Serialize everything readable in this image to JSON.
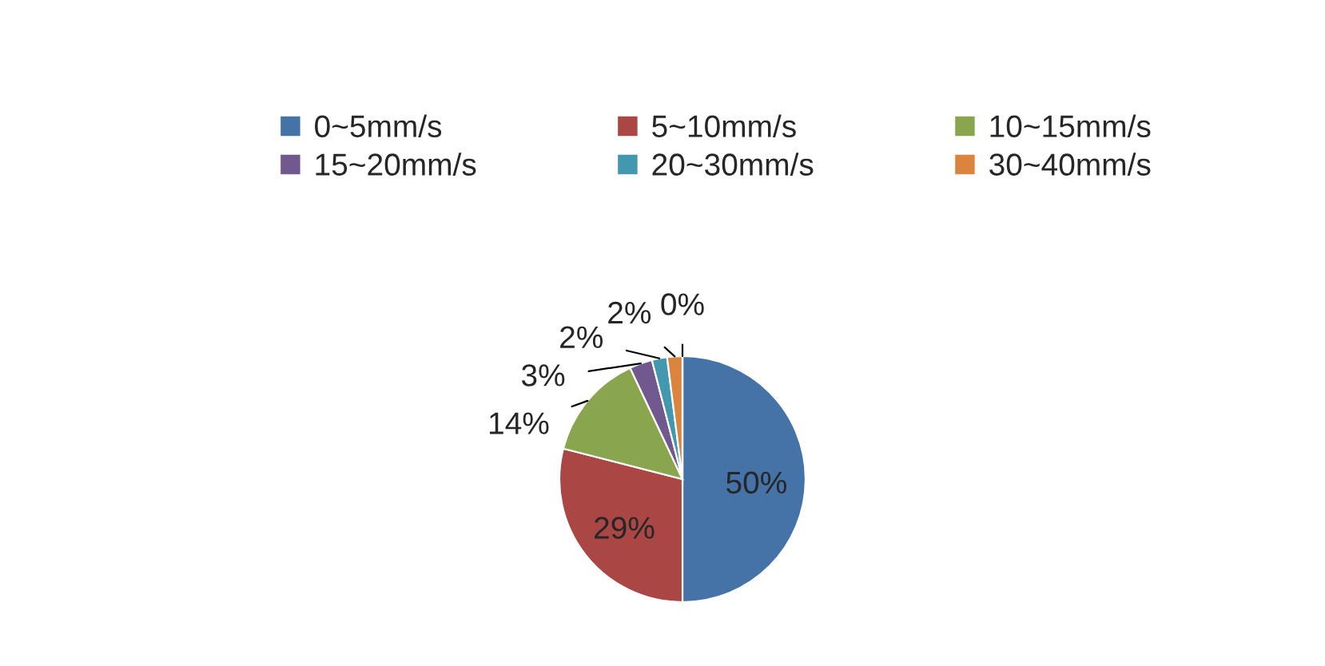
{
  "chart_data": {
    "type": "pie",
    "categories": [
      "0~5mm/s",
      "5~10mm/s",
      "10~15mm/s",
      "15~20mm/s",
      "20~30mm/s",
      "30~40mm/s",
      null
    ],
    "values": [
      50,
      29,
      14,
      3,
      2,
      2,
      0
    ],
    "colors": [
      "#4572a7",
      "#aa4643",
      "#89a54e",
      "#71588f",
      "#4198af",
      "#db843d",
      "#2c4d75"
    ],
    "value_labels": [
      "50%",
      "29%",
      "14%",
      "3%",
      "2%",
      "2%",
      "0%"
    ],
    "legend": "top"
  }
}
